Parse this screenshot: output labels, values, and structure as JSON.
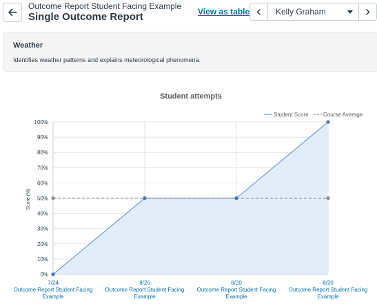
{
  "header": {
    "subtitle": "Outcome Report Student Facing Example",
    "title": "Single Outcome Report",
    "view_as_table_label": "View as table"
  },
  "student_nav": {
    "selected_student": "Kelly Graham"
  },
  "outcome": {
    "name": "Weather",
    "description": "Identifies weather patterns and explains meteorological phenomena."
  },
  "chart_data": {
    "type": "line",
    "title": "Student attempts",
    "xlabel": "",
    "ylabel": "Score (%)",
    "ylim": [
      0,
      100
    ],
    "yticks": [
      "0%",
      "10%",
      "20%",
      "30%",
      "40%",
      "50%",
      "60%",
      "70%",
      "80%",
      "90%",
      "100%"
    ],
    "categories": [
      {
        "date": "7/24",
        "label": "Outcome Report Student Facing Example"
      },
      {
        "date": "8/20",
        "label": "Outcome Report Student Facing Example"
      },
      {
        "date": "8/20",
        "label": "Outcome Report Student Facing Example"
      },
      {
        "date": "8/20",
        "label": "Outcome Report Student Facing Example"
      }
    ],
    "series": [
      {
        "name": "Student Score",
        "values": [
          0,
          50,
          50,
          100
        ],
        "color": "#6f9fd2",
        "fill": "#e3edf9",
        "style": "solid"
      },
      {
        "name": "Course Average",
        "values": [
          50,
          50,
          50,
          50
        ],
        "color": "#8a8f94",
        "style": "dashed"
      }
    ],
    "legend_position": "top-right",
    "grid": true
  }
}
